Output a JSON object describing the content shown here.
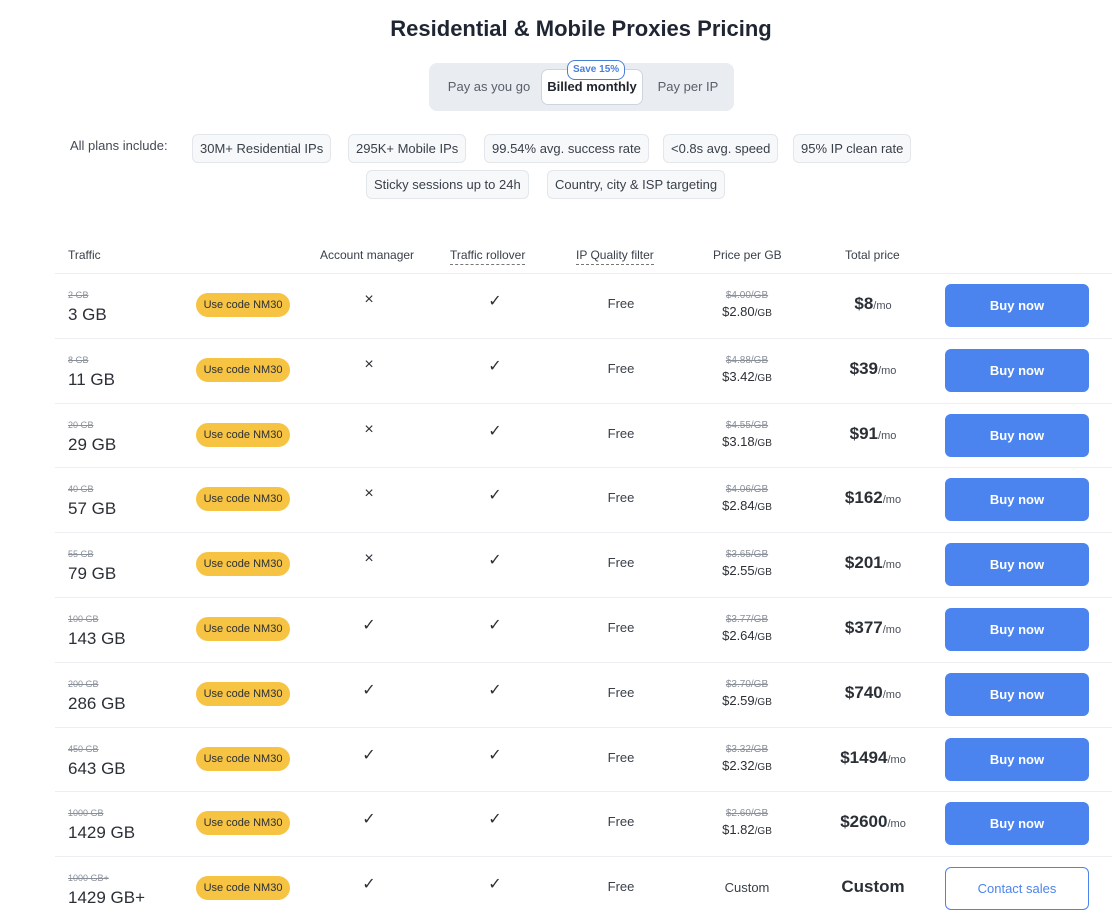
{
  "title": "Residential & Mobile Proxies Pricing",
  "billing_toggle": {
    "options": [
      "Pay as you go",
      "Billed monthly",
      "Pay per IP"
    ],
    "selected": "Billed monthly",
    "save_badge": "Save 15%"
  },
  "includes": {
    "label": "All plans include:",
    "features": [
      "30M+ Residential IPs",
      "295K+ Mobile IPs",
      "99.54% avg. success rate",
      "<0.8s avg. speed",
      "95% IP clean rate",
      "Sticky sessions up to 24h",
      "Country, city & ISP targeting"
    ]
  },
  "table": {
    "headers": {
      "traffic": "Traffic",
      "account_manager": "Account manager",
      "traffic_rollover": "Traffic rollover",
      "ip_quality": "IP Quality filter",
      "price_per_gb": "Price per GB",
      "total_price": "Total price"
    },
    "rows": [
      {
        "old_traffic": "2 GB",
        "traffic": "3 GB",
        "promo": "Use code NM30",
        "account_manager": "×",
        "traffic_rollover": "✓",
        "ip_quality": "Free",
        "old_price": "$4.00/GB",
        "price": "$2.80",
        "price_unit": "/GB",
        "total": "$8",
        "total_unit": "/mo",
        "action": "Buy now"
      },
      {
        "old_traffic": "8 GB",
        "traffic": "11 GB",
        "promo": "Use code NM30",
        "account_manager": "×",
        "traffic_rollover": "✓",
        "ip_quality": "Free",
        "old_price": "$4.88/GB",
        "price": "$3.42",
        "price_unit": "/GB",
        "total": "$39",
        "total_unit": "/mo",
        "action": "Buy now"
      },
      {
        "old_traffic": "20 GB",
        "traffic": "29 GB",
        "promo": "Use code NM30",
        "account_manager": "×",
        "traffic_rollover": "✓",
        "ip_quality": "Free",
        "old_price": "$4.55/GB",
        "price": "$3.18",
        "price_unit": "/GB",
        "total": "$91",
        "total_unit": "/mo",
        "action": "Buy now"
      },
      {
        "old_traffic": "40 GB",
        "traffic": "57 GB",
        "promo": "Use code NM30",
        "account_manager": "×",
        "traffic_rollover": "✓",
        "ip_quality": "Free",
        "old_price": "$4.06/GB",
        "price": "$2.84",
        "price_unit": "/GB",
        "total": "$162",
        "total_unit": "/mo",
        "action": "Buy now"
      },
      {
        "old_traffic": "55 GB",
        "traffic": "79 GB",
        "promo": "Use code NM30",
        "account_manager": "×",
        "traffic_rollover": "✓",
        "ip_quality": "Free",
        "old_price": "$3.65/GB",
        "price": "$2.55",
        "price_unit": "/GB",
        "total": "$201",
        "total_unit": "/mo",
        "action": "Buy now"
      },
      {
        "old_traffic": "100 GB",
        "traffic": "143 GB",
        "promo": "Use code NM30",
        "account_manager": "✓",
        "traffic_rollover": "✓",
        "ip_quality": "Free",
        "old_price": "$3.77/GB",
        "price": "$2.64",
        "price_unit": "/GB",
        "total": "$377",
        "total_unit": "/mo",
        "action": "Buy now"
      },
      {
        "old_traffic": "200 GB",
        "traffic": "286 GB",
        "promo": "Use code NM30",
        "account_manager": "✓",
        "traffic_rollover": "✓",
        "ip_quality": "Free",
        "old_price": "$3.70/GB",
        "price": "$2.59",
        "price_unit": "/GB",
        "total": "$740",
        "total_unit": "/mo",
        "action": "Buy now"
      },
      {
        "old_traffic": "450 GB",
        "traffic": "643 GB",
        "promo": "Use code NM30",
        "account_manager": "✓",
        "traffic_rollover": "✓",
        "ip_quality": "Free",
        "old_price": "$3.32/GB",
        "price": "$2.32",
        "price_unit": "/GB",
        "total": "$1494",
        "total_unit": "/mo",
        "action": "Buy now"
      },
      {
        "old_traffic": "1000 GB",
        "traffic": "1429 GB",
        "promo": "Use code NM30",
        "account_manager": "✓",
        "traffic_rollover": "✓",
        "ip_quality": "Free",
        "old_price": "$2.60/GB",
        "price": "$1.82",
        "price_unit": "/GB",
        "total": "$2600",
        "total_unit": "/mo",
        "action": "Buy now"
      },
      {
        "old_traffic": "1000 GB+",
        "traffic": "1429 GB+",
        "promo": "Use code NM30",
        "account_manager": "✓",
        "traffic_rollover": "✓",
        "ip_quality": "Free",
        "price_custom": "Custom",
        "total": "Custom",
        "action": "Contact sales"
      }
    ]
  }
}
